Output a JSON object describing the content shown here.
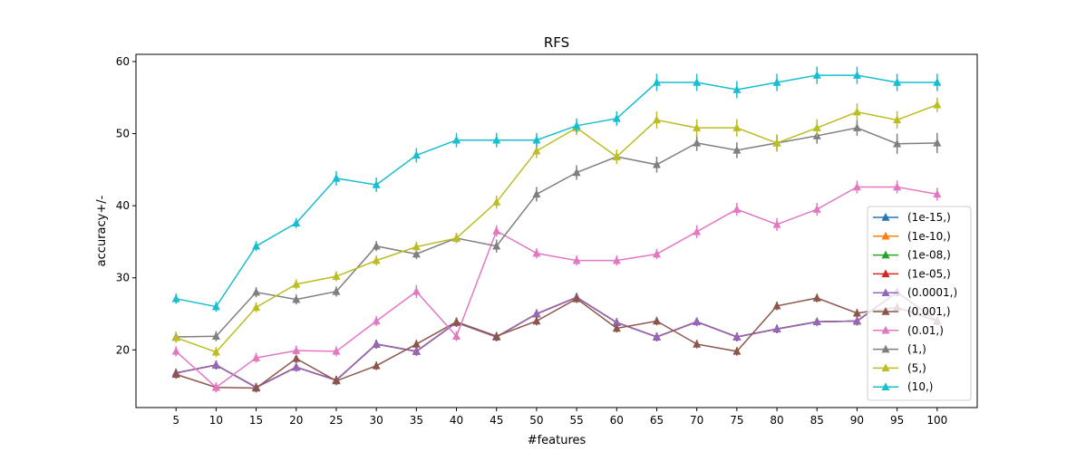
{
  "chart_data": {
    "type": "line",
    "title": "RFS",
    "xlabel": "#features",
    "ylabel": "accuracy+/-",
    "x": [
      5,
      10,
      15,
      20,
      25,
      30,
      35,
      40,
      45,
      50,
      55,
      60,
      65,
      70,
      75,
      80,
      85,
      90,
      95,
      100
    ],
    "xlim": [
      0,
      105
    ],
    "ylim": [
      12,
      61
    ],
    "yticks": [
      20,
      30,
      40,
      50,
      60
    ],
    "grid": false,
    "legend_position": "lower-right",
    "marker": "triangle-up",
    "series": [
      {
        "name": "(1e-15,)",
        "color": "#1f77b4",
        "values": [
          16.8,
          17.9,
          14.8,
          17.6,
          15.8,
          20.8,
          19.8,
          23.8,
          21.8,
          25.0,
          27.3,
          23.8,
          21.8,
          23.9,
          21.8,
          22.9,
          23.9,
          24.0,
          28.0,
          24.0
        ],
        "errors": [
          0.6,
          0.6,
          0.6,
          0.6,
          0.6,
          0.6,
          0.6,
          0.6,
          0.6,
          0.6,
          0.6,
          0.6,
          0.6,
          0.6,
          0.6,
          0.6,
          0.6,
          0.6,
          0.6,
          0.6
        ]
      },
      {
        "name": "(1e-10,)",
        "color": "#ff7f0e",
        "values": [
          16.8,
          17.9,
          14.8,
          17.6,
          15.8,
          20.8,
          19.8,
          23.8,
          21.8,
          25.0,
          27.3,
          23.8,
          21.8,
          23.9,
          21.8,
          22.9,
          23.9,
          24.0,
          28.0,
          24.0
        ],
        "errors": [
          0.6,
          0.6,
          0.6,
          0.6,
          0.6,
          0.6,
          0.6,
          0.6,
          0.6,
          0.6,
          0.6,
          0.6,
          0.6,
          0.6,
          0.6,
          0.6,
          0.6,
          0.6,
          0.6,
          0.6
        ]
      },
      {
        "name": "(1e-08,)",
        "color": "#2ca02c",
        "values": [
          16.8,
          17.9,
          14.8,
          17.6,
          15.8,
          20.8,
          19.8,
          23.8,
          21.8,
          25.0,
          27.3,
          23.8,
          21.8,
          23.9,
          21.8,
          22.9,
          23.9,
          24.0,
          28.0,
          24.0
        ],
        "errors": [
          0.6,
          0.6,
          0.6,
          0.6,
          0.6,
          0.6,
          0.6,
          0.6,
          0.6,
          0.6,
          0.6,
          0.6,
          0.6,
          0.6,
          0.6,
          0.6,
          0.6,
          0.6,
          0.6,
          0.6
        ]
      },
      {
        "name": "(1e-05,)",
        "color": "#d62728",
        "values": [
          16.8,
          17.9,
          14.8,
          17.6,
          15.8,
          20.8,
          19.8,
          23.8,
          21.8,
          25.0,
          27.3,
          23.8,
          21.8,
          23.9,
          21.8,
          22.9,
          23.9,
          24.0,
          28.0,
          24.0
        ],
        "errors": [
          0.6,
          0.6,
          0.6,
          0.6,
          0.6,
          0.6,
          0.6,
          0.6,
          0.6,
          0.6,
          0.6,
          0.6,
          0.6,
          0.6,
          0.6,
          0.6,
          0.6,
          0.6,
          0.6,
          0.6
        ]
      },
      {
        "name": "(0.0001,)",
        "color": "#9467bd",
        "values": [
          16.8,
          17.9,
          14.8,
          17.6,
          15.8,
          20.8,
          19.8,
          23.8,
          21.8,
          25.0,
          27.3,
          23.8,
          21.8,
          23.9,
          21.8,
          22.9,
          23.9,
          24.0,
          28.0,
          24.0
        ],
        "errors": [
          0.6,
          0.6,
          0.6,
          0.6,
          0.6,
          0.6,
          0.6,
          0.6,
          0.6,
          0.6,
          0.6,
          0.6,
          0.6,
          0.6,
          0.6,
          0.6,
          0.6,
          0.6,
          0.6,
          0.6
        ]
      },
      {
        "name": "(0.001,)",
        "color": "#8c564b",
        "values": [
          16.6,
          14.8,
          14.7,
          18.8,
          15.7,
          17.8,
          20.8,
          23.9,
          21.9,
          24.0,
          27.1,
          23.0,
          24.0,
          20.8,
          19.8,
          26.1,
          27.2,
          25.1,
          25.9,
          24.0
        ],
        "errors": [
          0.6,
          0.6,
          0.6,
          0.6,
          0.6,
          0.6,
          0.6,
          0.6,
          0.6,
          0.6,
          0.6,
          0.6,
          0.6,
          0.6,
          0.6,
          0.6,
          0.6,
          0.6,
          0.6,
          0.6
        ]
      },
      {
        "name": "(0.01,)",
        "color": "#e377c2",
        "values": [
          19.8,
          14.8,
          18.9,
          19.9,
          19.8,
          24.0,
          28.1,
          21.9,
          36.5,
          33.4,
          32.4,
          32.4,
          33.3,
          36.4,
          39.5,
          37.4,
          39.5,
          42.6,
          42.6,
          41.6
        ],
        "errors": [
          0.7,
          0.7,
          0.7,
          0.7,
          0.7,
          0.7,
          0.9,
          0.7,
          0.8,
          0.7,
          0.7,
          0.7,
          0.7,
          0.9,
          0.9,
          0.9,
          0.9,
          0.9,
          0.9,
          0.9
        ]
      },
      {
        "name": "(1,)",
        "color": "#7f7f7f",
        "values": [
          21.8,
          21.9,
          28.0,
          27.0,
          28.1,
          34.4,
          33.3,
          35.5,
          34.4,
          41.6,
          44.6,
          46.8,
          45.7,
          48.7,
          47.7,
          48.7,
          49.7,
          50.8,
          48.6,
          48.7
        ],
        "errors": [
          0.7,
          0.7,
          0.7,
          0.7,
          0.7,
          0.7,
          0.7,
          0.7,
          0.9,
          1.0,
          1.0,
          0.9,
          1.1,
          1.1,
          1.1,
          1.1,
          1.1,
          1.1,
          1.4,
          1.4
        ]
      },
      {
        "name": "(5,)",
        "color": "#bcbd22",
        "values": [
          21.7,
          19.7,
          25.9,
          29.1,
          30.2,
          32.4,
          34.3,
          35.5,
          40.5,
          47.6,
          50.8,
          46.8,
          51.9,
          50.8,
          50.8,
          48.7,
          50.8,
          53.0,
          51.9,
          54.0
        ],
        "errors": [
          0.7,
          0.7,
          0.7,
          0.7,
          0.7,
          0.7,
          0.7,
          0.7,
          0.9,
          1.0,
          1.0,
          1.0,
          1.2,
          1.2,
          1.2,
          1.2,
          1.2,
          1.2,
          1.2,
          1.0
        ]
      },
      {
        "name": "(10,)",
        "color": "#17becf",
        "values": [
          27.1,
          26.0,
          34.4,
          37.6,
          43.8,
          42.9,
          47.0,
          49.1,
          49.1,
          49.1,
          51.1,
          52.1,
          57.1,
          57.1,
          56.1,
          57.1,
          58.1,
          58.1,
          57.1,
          57.1
        ],
        "errors": [
          0.7,
          0.7,
          0.7,
          0.7,
          1.0,
          1.0,
          1.0,
          1.0,
          1.0,
          1.0,
          1.0,
          1.0,
          1.2,
          1.2,
          1.2,
          1.2,
          1.2,
          1.2,
          1.2,
          1.2
        ]
      }
    ]
  }
}
